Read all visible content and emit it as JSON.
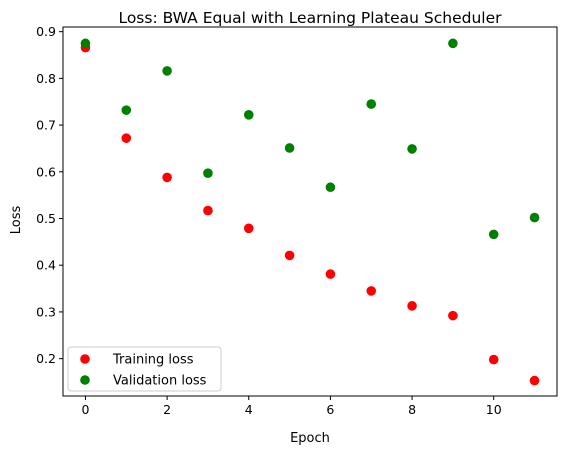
{
  "chart_data": {
    "type": "scatter",
    "title": "Loss: BWA Equal with Learning Plateau Scheduler",
    "xlabel": "Epoch",
    "ylabel": "Loss",
    "xlim": [
      -0.55,
      11.55
    ],
    "ylim": [
      0.12,
      0.91
    ],
    "xticks": [
      0,
      2,
      4,
      6,
      8,
      10
    ],
    "yticks": [
      0.2,
      0.3,
      0.4,
      0.5,
      0.6,
      0.7,
      0.8,
      0.9
    ],
    "grid": false,
    "legend_position": "lower-left",
    "series": [
      {
        "name": "Training loss",
        "color": "#ff0000",
        "x": [
          0,
          1,
          2,
          3,
          4,
          5,
          6,
          7,
          8,
          9,
          10,
          11
        ],
        "y": [
          0.866,
          0.672,
          0.588,
          0.517,
          0.479,
          0.421,
          0.381,
          0.345,
          0.313,
          0.292,
          0.198,
          0.153
        ]
      },
      {
        "name": "Validation loss",
        "color": "#008000",
        "x": [
          0,
          1,
          2,
          3,
          4,
          5,
          6,
          7,
          8,
          9,
          10,
          11
        ],
        "y": [
          0.875,
          0.732,
          0.816,
          0.597,
          0.722,
          0.651,
          0.567,
          0.745,
          0.649,
          0.875,
          0.466,
          0.502
        ]
      }
    ]
  }
}
